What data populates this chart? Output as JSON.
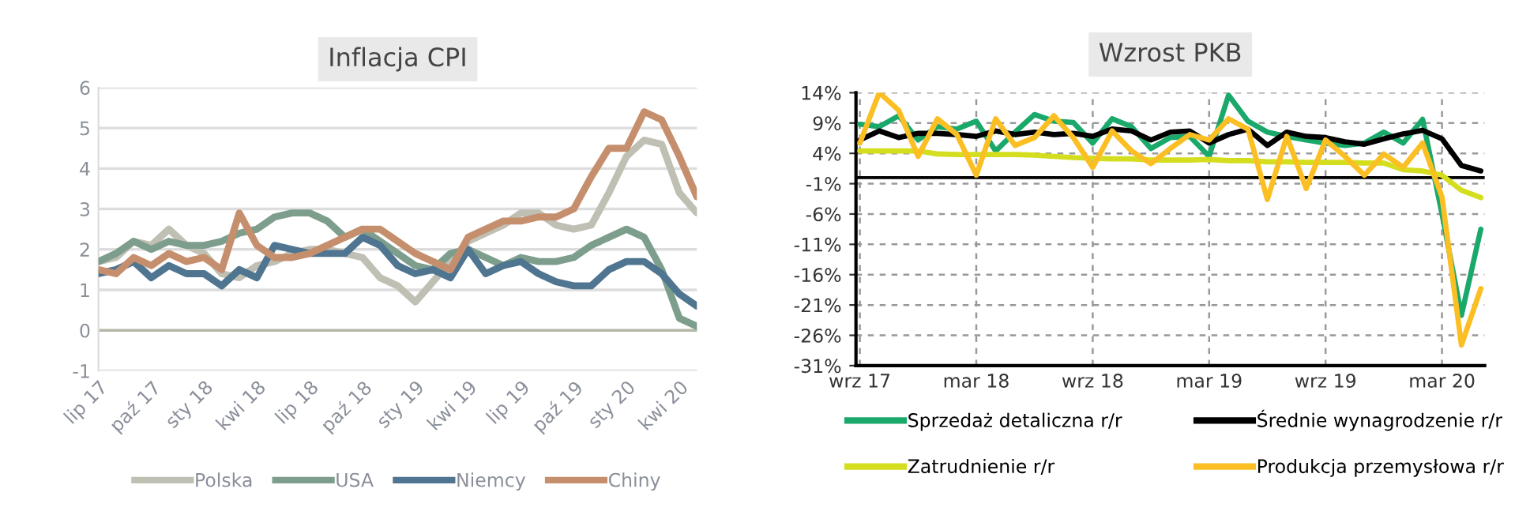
{
  "chart_data": [
    {
      "type": "line",
      "title": "Inflacja CPI",
      "categories": [
        "lip 17",
        null,
        null,
        "paź 17",
        null,
        null,
        "sty 18",
        null,
        null,
        "kwi 18",
        null,
        null,
        "lip 18",
        null,
        null,
        "paź 18",
        null,
        null,
        "sty 19",
        null,
        null,
        "kwi 19",
        null,
        null,
        "lip 19",
        null,
        null,
        "paź 19",
        null,
        null,
        "sty 20",
        null,
        null,
        "kwi 20",
        null
      ],
      "series": [
        {
          "name": "Polska",
          "color": "#bfbfb4",
          "values": [
            1.7,
            1.8,
            2.2,
            2.1,
            2.5,
            2.1,
            1.9,
            1.4,
            1.3,
            1.6,
            1.7,
            1.9,
            2.0,
            2.0,
            1.9,
            1.8,
            1.3,
            1.1,
            0.7,
            1.2,
            1.7,
            2.2,
            2.4,
            2.6,
            2.9,
            2.9,
            2.6,
            2.5,
            2.6,
            3.4,
            4.3,
            4.7,
            4.6,
            3.4,
            2.9
          ]
        },
        {
          "name": "USA",
          "color": "#7d9e8c",
          "values": [
            1.7,
            1.9,
            2.2,
            2.0,
            2.2,
            2.1,
            2.1,
            2.2,
            2.4,
            2.5,
            2.8,
            2.9,
            2.9,
            2.7,
            2.3,
            2.5,
            2.2,
            1.9,
            1.6,
            1.5,
            1.9,
            2.0,
            1.8,
            1.6,
            1.8,
            1.7,
            1.7,
            1.8,
            2.1,
            2.3,
            2.5,
            2.3,
            1.5,
            0.3,
            0.1
          ]
        },
        {
          "name": "Niemcy",
          "color": "#4f7590",
          "values": [
            1.4,
            1.5,
            1.7,
            1.3,
            1.6,
            1.4,
            1.4,
            1.1,
            1.5,
            1.3,
            2.1,
            2.0,
            1.9,
            1.9,
            1.9,
            2.3,
            2.1,
            1.6,
            1.4,
            1.5,
            1.3,
            2.0,
            1.4,
            1.6,
            1.7,
            1.4,
            1.2,
            1.1,
            1.1,
            1.5,
            1.7,
            1.7,
            1.4,
            0.9,
            0.6
          ]
        },
        {
          "name": "Chiny",
          "color": "#c58f6e",
          "values": [
            1.5,
            1.4,
            1.8,
            1.6,
            1.9,
            1.7,
            1.8,
            1.5,
            2.9,
            2.1,
            1.8,
            1.8,
            1.9,
            2.1,
            2.3,
            2.5,
            2.5,
            2.2,
            1.9,
            1.7,
            1.5,
            2.3,
            2.5,
            2.7,
            2.7,
            2.8,
            2.8,
            3.0,
            3.8,
            4.5,
            4.5,
            5.4,
            5.2,
            4.3,
            3.3
          ]
        }
      ],
      "ylim": [
        -1,
        6
      ],
      "yticks": [
        -1,
        0,
        1,
        2,
        3,
        4,
        5,
        6
      ],
      "ref_lines": [
        {
          "axis": "y",
          "value": 0,
          "color": "#b5b9a8"
        }
      ],
      "grid": "y",
      "legend": "bottom"
    },
    {
      "type": "line",
      "title": "Wzrost PKB",
      "categories": [
        "wrz 17",
        null,
        null,
        null,
        null,
        null,
        "mar 18",
        null,
        null,
        null,
        null,
        null,
        "wrz 18",
        null,
        null,
        null,
        null,
        null,
        "mar 19",
        null,
        null,
        null,
        null,
        null,
        "wrz 19",
        null,
        null,
        null,
        null,
        null,
        "mar 20",
        null,
        null
      ],
      "series": [
        {
          "name": "Sprzedaż detaliczna r/r",
          "color": "#1aa86b",
          "values": [
            8.8,
            8.4,
            10.2,
            6.2,
            8.4,
            8.0,
            9.3,
            4.4,
            7.5,
            10.4,
            9.3,
            9.1,
            5.7,
            9.7,
            8.4,
            4.8,
            6.6,
            6.8,
            3.5,
            13.6,
            9.3,
            7.5,
            6.8,
            6.2,
            5.7,
            5.3,
            5.7,
            7.5,
            5.7,
            9.6,
            -6.0,
            -22.7,
            -8.5
          ]
        },
        {
          "name": "Średnie wynagrodzenie r/r",
          "color": "#000000",
          "values": [
            6.2,
            7.7,
            6.6,
            7.3,
            7.3,
            7.1,
            6.8,
            7.7,
            7.1,
            7.5,
            7.1,
            7.3,
            6.8,
            8.0,
            7.7,
            6.2,
            7.5,
            7.7,
            5.7,
            7.1,
            8.0,
            5.3,
            7.5,
            6.8,
            6.6,
            5.9,
            5.5,
            6.4,
            7.2,
            7.8,
            6.4,
            2.0,
            1.1
          ]
        },
        {
          "name": "Zatrudnienie r/r",
          "color": "#d4de1e",
          "values": [
            4.4,
            4.4,
            4.4,
            4.4,
            3.9,
            3.8,
            3.8,
            3.8,
            3.8,
            3.7,
            3.5,
            3.3,
            3.2,
            3.1,
            3.1,
            2.9,
            2.9,
            2.9,
            3.0,
            2.8,
            2.8,
            2.6,
            2.6,
            2.5,
            2.5,
            2.5,
            2.4,
            2.4,
            1.3,
            1.1,
            0.4,
            -2.1,
            -3.3
          ]
        },
        {
          "name": "Produkcja przemysłowa r/r",
          "color": "#fbbf24",
          "values": [
            5.7,
            14,
            11.1,
            3.5,
            9.7,
            7.1,
            0.4,
            9.7,
            5.3,
            6.6,
            10.2,
            6.6,
            1.7,
            7.7,
            4.4,
            2.3,
            4.8,
            7.1,
            6.2,
            9.7,
            8.0,
            -3.6,
            6.8,
            -1.8,
            6.2,
            3.5,
            0.4,
            3.9,
            1.7,
            5.7,
            -3.2,
            -27.6,
            -18.3
          ]
        }
      ],
      "ylim": [
        -31,
        14
      ],
      "yticks": [
        {
          "value": -31,
          "label": "-31%"
        },
        {
          "value": -26,
          "label": "-26%"
        },
        {
          "value": -21,
          "label": "-21%"
        },
        {
          "value": -16,
          "label": "-16%"
        },
        {
          "value": -11,
          "label": "-11%"
        },
        {
          "value": -6,
          "label": "-6%"
        },
        {
          "value": -1,
          "label": "-1%"
        },
        {
          "value": 4,
          "label": "4%"
        },
        {
          "value": 9,
          "label": "9%"
        },
        {
          "value": 14,
          "label": "14%"
        }
      ],
      "ref_lines": [
        {
          "axis": "y",
          "value": 0,
          "color": "#000000"
        }
      ],
      "grid": true,
      "legend": "bottom"
    }
  ]
}
